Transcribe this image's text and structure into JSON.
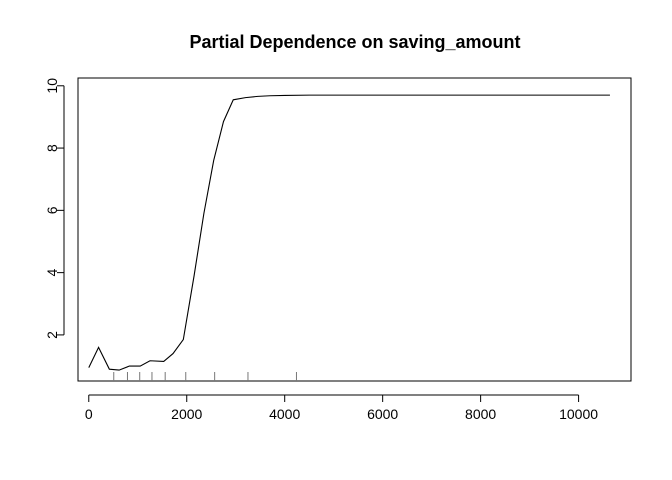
{
  "chart_data": {
    "type": "line",
    "title": "Partial Dependence on saving_amount",
    "xlabel": "",
    "ylabel": "",
    "xlim": [
      0,
      11000
    ],
    "ylim": [
      0.5,
      10
    ],
    "x_ticks": [
      0,
      2000,
      4000,
      6000,
      8000,
      10000
    ],
    "y_ticks": [
      2,
      4,
      6,
      8,
      10
    ],
    "grid": false,
    "legend": "none",
    "series": [
      {
        "color": "#000000",
        "x": [
          0,
          200,
          420,
          620,
          830,
          1050,
          1250,
          1530,
          1720,
          1930,
          2150,
          2350,
          2550,
          2750,
          2950,
          3200,
          3450,
          3700,
          4000,
          4500,
          5500,
          7000,
          9000,
          10640
        ],
        "y": [
          0.95,
          1.6,
          0.9,
          0.87,
          1.0,
          1.0,
          1.17,
          1.15,
          1.4,
          1.85,
          3.9,
          5.9,
          7.6,
          8.85,
          9.55,
          9.62,
          9.66,
          9.68,
          9.69,
          9.7,
          9.7,
          9.7,
          9.7,
          9.7
        ]
      }
    ],
    "rug_x": [
      510,
      790,
      1040,
      1290,
      1560,
      1980,
      2570,
      3250,
      4240
    ]
  }
}
